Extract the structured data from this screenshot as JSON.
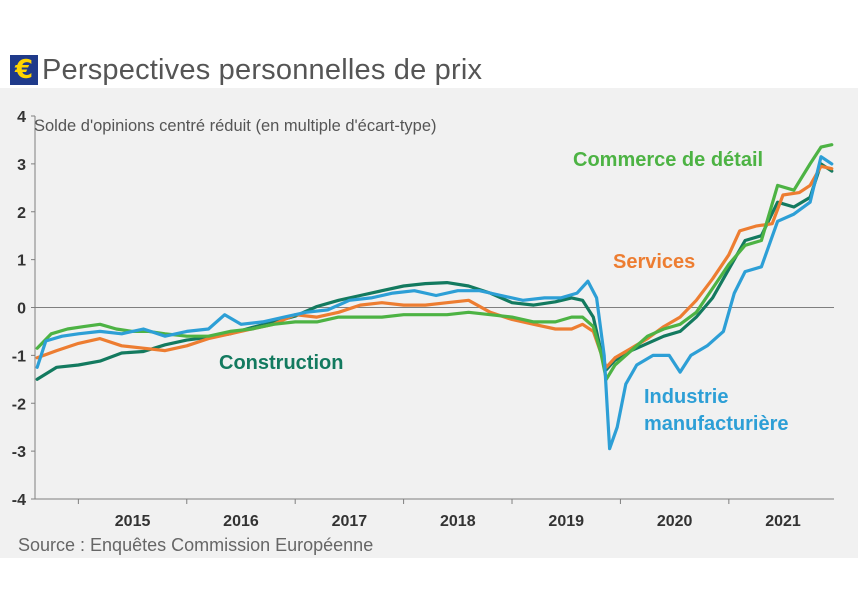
{
  "title": "Perspectives personnelles de prix",
  "source": "Source : Enquêtes Commission Européenne",
  "colors": {
    "construction": "#137a5f",
    "services": "#ed7d31",
    "industrie": "#2d9fd6",
    "commerce": "#4db344",
    "euro_badge": "#1f3a8a"
  },
  "chart_data": {
    "type": "line",
    "title": "",
    "ylabel": "Solde d'opinions centré réduit (en multiple d'écart-type)",
    "xlabel": "",
    "ylim": [
      -4,
      4
    ],
    "xlim": [
      2014.6,
      2021.97
    ],
    "yticks": [
      4,
      3,
      2,
      1,
      0,
      -1,
      -2,
      -3,
      -4
    ],
    "xticks": [
      "2015",
      "2016",
      "2017",
      "2018",
      "2019",
      "2020",
      "2021"
    ],
    "grid": false,
    "legend": "inline labels",
    "series": [
      {
        "name": "Construction",
        "key": "construction",
        "points": [
          [
            2014.62,
            -1.5
          ],
          [
            2014.8,
            -1.25
          ],
          [
            2015.0,
            -1.2
          ],
          [
            2015.2,
            -1.12
          ],
          [
            2015.4,
            -0.95
          ],
          [
            2015.6,
            -0.92
          ],
          [
            2015.8,
            -0.78
          ],
          [
            2016.0,
            -0.68
          ],
          [
            2016.2,
            -0.62
          ],
          [
            2016.4,
            -0.55
          ],
          [
            2016.6,
            -0.42
          ],
          [
            2016.8,
            -0.3
          ],
          [
            2017.0,
            -0.18
          ],
          [
            2017.2,
            0.02
          ],
          [
            2017.4,
            0.15
          ],
          [
            2017.6,
            0.25
          ],
          [
            2017.8,
            0.35
          ],
          [
            2018.0,
            0.45
          ],
          [
            2018.2,
            0.5
          ],
          [
            2018.4,
            0.52
          ],
          [
            2018.6,
            0.45
          ],
          [
            2018.8,
            0.3
          ],
          [
            2019.0,
            0.1
          ],
          [
            2019.2,
            0.05
          ],
          [
            2019.4,
            0.12
          ],
          [
            2019.55,
            0.2
          ],
          [
            2019.65,
            0.15
          ],
          [
            2019.75,
            -0.2
          ],
          [
            2019.82,
            -0.9
          ],
          [
            2019.87,
            -1.3
          ],
          [
            2019.95,
            -1.1
          ],
          [
            2020.1,
            -0.9
          ],
          [
            2020.25,
            -0.75
          ],
          [
            2020.4,
            -0.6
          ],
          [
            2020.55,
            -0.5
          ],
          [
            2020.7,
            -0.2
          ],
          [
            2020.85,
            0.2
          ],
          [
            2021.0,
            0.8
          ],
          [
            2021.15,
            1.4
          ],
          [
            2021.3,
            1.5
          ],
          [
            2021.45,
            2.2
          ],
          [
            2021.6,
            2.1
          ],
          [
            2021.75,
            2.3
          ],
          [
            2021.85,
            3.0
          ],
          [
            2021.95,
            2.85
          ]
        ]
      },
      {
        "name": "Services",
        "key": "services",
        "points": [
          [
            2014.62,
            -1.05
          ],
          [
            2014.8,
            -0.9
          ],
          [
            2015.0,
            -0.75
          ],
          [
            2015.2,
            -0.65
          ],
          [
            2015.4,
            -0.8
          ],
          [
            2015.6,
            -0.85
          ],
          [
            2015.8,
            -0.9
          ],
          [
            2016.0,
            -0.8
          ],
          [
            2016.2,
            -0.65
          ],
          [
            2016.4,
            -0.55
          ],
          [
            2016.6,
            -0.45
          ],
          [
            2016.8,
            -0.35
          ],
          [
            2017.0,
            -0.15
          ],
          [
            2017.2,
            -0.2
          ],
          [
            2017.4,
            -0.1
          ],
          [
            2017.6,
            0.05
          ],
          [
            2017.8,
            0.1
          ],
          [
            2018.0,
            0.05
          ],
          [
            2018.2,
            0.05
          ],
          [
            2018.4,
            0.1
          ],
          [
            2018.6,
            0.15
          ],
          [
            2018.8,
            -0.1
          ],
          [
            2019.0,
            -0.25
          ],
          [
            2019.2,
            -0.35
          ],
          [
            2019.4,
            -0.45
          ],
          [
            2019.55,
            -0.45
          ],
          [
            2019.65,
            -0.35
          ],
          [
            2019.75,
            -0.5
          ],
          [
            2019.82,
            -0.95
          ],
          [
            2019.87,
            -1.25
          ],
          [
            2019.95,
            -1.05
          ],
          [
            2020.1,
            -0.85
          ],
          [
            2020.25,
            -0.65
          ],
          [
            2020.4,
            -0.4
          ],
          [
            2020.55,
            -0.2
          ],
          [
            2020.7,
            0.15
          ],
          [
            2020.85,
            0.6
          ],
          [
            2021.0,
            1.1
          ],
          [
            2021.1,
            1.6
          ],
          [
            2021.25,
            1.7
          ],
          [
            2021.4,
            1.75
          ],
          [
            2021.5,
            2.35
          ],
          [
            2021.65,
            2.4
          ],
          [
            2021.75,
            2.55
          ],
          [
            2021.85,
            2.95
          ],
          [
            2021.95,
            2.9
          ]
        ]
      },
      {
        "name": "Industrie manufacturière",
        "key": "industrie",
        "label_lines": [
          "Industrie",
          "manufacturière"
        ],
        "points": [
          [
            2014.62,
            -1.25
          ],
          [
            2014.7,
            -0.7
          ],
          [
            2014.85,
            -0.6
          ],
          [
            2015.0,
            -0.55
          ],
          [
            2015.2,
            -0.5
          ],
          [
            2015.4,
            -0.55
          ],
          [
            2015.6,
            -0.45
          ],
          [
            2015.8,
            -0.6
          ],
          [
            2016.0,
            -0.5
          ],
          [
            2016.2,
            -0.45
          ],
          [
            2016.35,
            -0.15
          ],
          [
            2016.5,
            -0.35
          ],
          [
            2016.7,
            -0.3
          ],
          [
            2016.9,
            -0.2
          ],
          [
            2017.1,
            -0.1
          ],
          [
            2017.3,
            -0.05
          ],
          [
            2017.5,
            0.15
          ],
          [
            2017.7,
            0.2
          ],
          [
            2017.9,
            0.3
          ],
          [
            2018.1,
            0.35
          ],
          [
            2018.3,
            0.25
          ],
          [
            2018.5,
            0.35
          ],
          [
            2018.7,
            0.35
          ],
          [
            2018.9,
            0.25
          ],
          [
            2019.1,
            0.15
          ],
          [
            2019.3,
            0.2
          ],
          [
            2019.45,
            0.2
          ],
          [
            2019.6,
            0.3
          ],
          [
            2019.7,
            0.55
          ],
          [
            2019.78,
            0.2
          ],
          [
            2019.85,
            -1.0
          ],
          [
            2019.9,
            -2.95
          ],
          [
            2019.97,
            -2.5
          ],
          [
            2020.05,
            -1.6
          ],
          [
            2020.15,
            -1.2
          ],
          [
            2020.3,
            -1.0
          ],
          [
            2020.45,
            -1.0
          ],
          [
            2020.55,
            -1.35
          ],
          [
            2020.65,
            -1.0
          ],
          [
            2020.8,
            -0.8
          ],
          [
            2020.95,
            -0.5
          ],
          [
            2021.05,
            0.3
          ],
          [
            2021.15,
            0.75
          ],
          [
            2021.3,
            0.85
          ],
          [
            2021.45,
            1.8
          ],
          [
            2021.6,
            1.95
          ],
          [
            2021.75,
            2.2
          ],
          [
            2021.85,
            3.15
          ],
          [
            2021.95,
            3.0
          ]
        ]
      },
      {
        "name": "Commerce de détail",
        "key": "commerce",
        "points": [
          [
            2014.62,
            -0.85
          ],
          [
            2014.75,
            -0.55
          ],
          [
            2014.9,
            -0.45
          ],
          [
            2015.05,
            -0.4
          ],
          [
            2015.2,
            -0.35
          ],
          [
            2015.35,
            -0.45
          ],
          [
            2015.5,
            -0.5
          ],
          [
            2015.65,
            -0.5
          ],
          [
            2015.8,
            -0.55
          ],
          [
            2016.0,
            -0.6
          ],
          [
            2016.2,
            -0.6
          ],
          [
            2016.4,
            -0.5
          ],
          [
            2016.6,
            -0.45
          ],
          [
            2016.8,
            -0.35
          ],
          [
            2017.0,
            -0.3
          ],
          [
            2017.2,
            -0.3
          ],
          [
            2017.4,
            -0.2
          ],
          [
            2017.6,
            -0.2
          ],
          [
            2017.8,
            -0.2
          ],
          [
            2018.0,
            -0.15
          ],
          [
            2018.2,
            -0.15
          ],
          [
            2018.4,
            -0.15
          ],
          [
            2018.6,
            -0.1
          ],
          [
            2018.8,
            -0.15
          ],
          [
            2019.0,
            -0.2
          ],
          [
            2019.2,
            -0.3
          ],
          [
            2019.4,
            -0.3
          ],
          [
            2019.55,
            -0.2
          ],
          [
            2019.65,
            -0.2
          ],
          [
            2019.75,
            -0.4
          ],
          [
            2019.82,
            -0.95
          ],
          [
            2019.87,
            -1.5
          ],
          [
            2019.95,
            -1.2
          ],
          [
            2020.1,
            -0.9
          ],
          [
            2020.25,
            -0.6
          ],
          [
            2020.4,
            -0.45
          ],
          [
            2020.55,
            -0.35
          ],
          [
            2020.7,
            -0.1
          ],
          [
            2020.85,
            0.4
          ],
          [
            2021.0,
            0.9
          ],
          [
            2021.15,
            1.3
          ],
          [
            2021.3,
            1.4
          ],
          [
            2021.45,
            2.55
          ],
          [
            2021.6,
            2.45
          ],
          [
            2021.75,
            3.0
          ],
          [
            2021.85,
            3.35
          ],
          [
            2021.95,
            3.4
          ]
        ]
      }
    ],
    "labels": [
      {
        "key": "construction",
        "text": "Construction"
      },
      {
        "key": "services",
        "text": "Services"
      },
      {
        "key": "industrie",
        "lines": [
          "Industrie",
          "manufacturière"
        ]
      },
      {
        "key": "commerce",
        "text": "Commerce de détail"
      }
    ]
  }
}
